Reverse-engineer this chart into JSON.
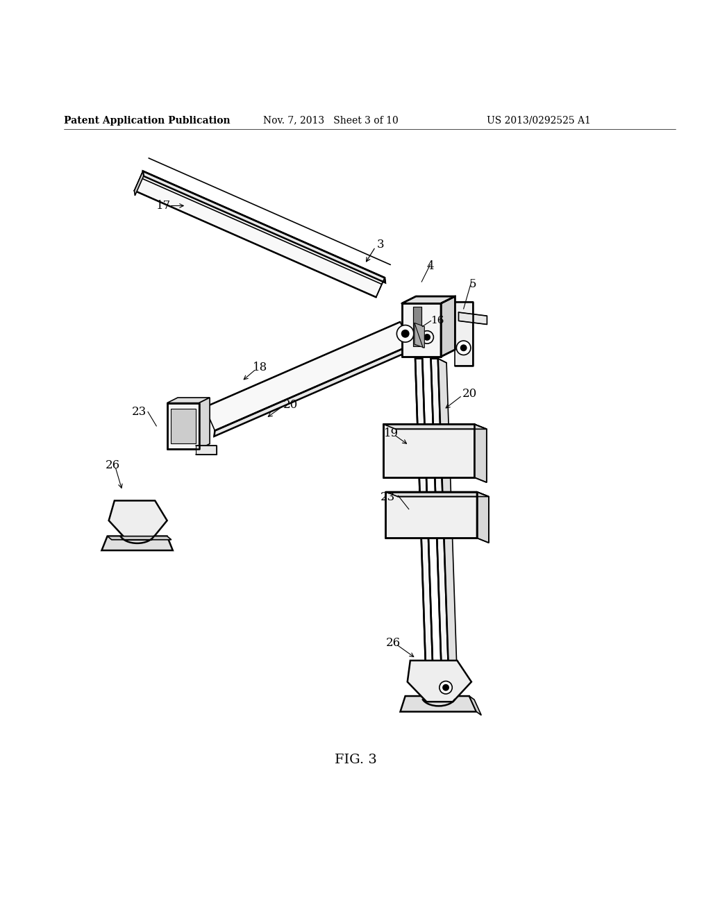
{
  "background_color": "#ffffff",
  "header_left": "Patent Application Publication",
  "header_center": "Nov. 7, 2013   Sheet 3 of 10",
  "header_right": "US 2013/0292525 A1",
  "footer_label": "FIG. 3",
  "header_fontsize": 10,
  "footer_fontsize": 14,
  "line_color": "#000000",
  "lw_thick": 1.8,
  "lw_med": 1.2,
  "lw_thin": 0.8,
  "label_fontsize": 12,
  "fig_width": 10.24,
  "fig_height": 13.2,
  "dpi": 100
}
